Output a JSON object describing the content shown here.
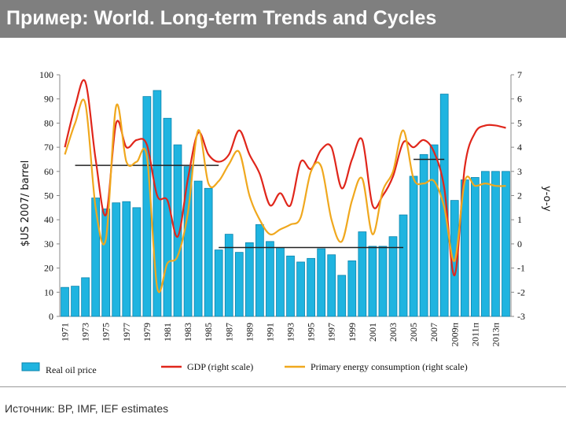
{
  "chart_data": {
    "type": "bar-line",
    "title": "Пример: World. Long-term Trends and Cycles",
    "source": "Источник: BP, IMF, IEF estimates",
    "ylabel": "$US 2007/ barrel",
    "y2label": "y-o-y",
    "categories": [
      "1971",
      null,
      "1973",
      null,
      "1975",
      null,
      "1977",
      null,
      "1979",
      null,
      "1981",
      null,
      "1983",
      null,
      "1985",
      null,
      "1987",
      null,
      "1989",
      null,
      "1991",
      null,
      "1993",
      null,
      "1995",
      null,
      "1997",
      null,
      "1999",
      null,
      "2001",
      null,
      "2003",
      null,
      "2005",
      null,
      "2007",
      null,
      "2009п",
      null,
      "2011п",
      null,
      "2013п",
      null
    ],
    "series": [
      {
        "name": "Real oil price",
        "type": "bar",
        "color": "#1fb4e0",
        "values": [
          12,
          12.5,
          16,
          49,
          44.5,
          47,
          47.5,
          45,
          91,
          93.5,
          82,
          71,
          62,
          56,
          53,
          27.5,
          34,
          26.5,
          30.5,
          38,
          31,
          28.5,
          25,
          22.5,
          24,
          28,
          25.5,
          17,
          23,
          35,
          29,
          29,
          33,
          42,
          58,
          67,
          71,
          92,
          48,
          56.5,
          57.5,
          60,
          60,
          60
        ]
      },
      {
        "name": "GDP (right scale)",
        "type": "line",
        "axis": "y2",
        "color": "#e0261b",
        "values": [
          4.0,
          5.7,
          6.7,
          3.5,
          1.2,
          5.0,
          4.0,
          4.3,
          4.1,
          2.0,
          1.8,
          0.3,
          2.7,
          4.6,
          3.7,
          3.4,
          3.7,
          4.7,
          3.7,
          2.9,
          1.6,
          2.1,
          1.6,
          3.4,
          3.1,
          3.9,
          4.0,
          2.3,
          3.5,
          4.3,
          1.6,
          2.0,
          2.8,
          4.2,
          4.0,
          4.3,
          3.8,
          2.3,
          -1.3,
          3.2,
          4.6,
          4.9,
          4.9,
          4.8
        ]
      },
      {
        "name": "Primary energy consumption (right scale)",
        "type": "line",
        "axis": "y2",
        "color": "#f0a81e",
        "values": [
          3.7,
          5.0,
          5.8,
          1.5,
          0.2,
          5.7,
          3.4,
          3.4,
          3.6,
          -1.8,
          -0.8,
          -0.5,
          1.3,
          4.7,
          2.5,
          2.6,
          3.3,
          3.8,
          2.0,
          1.0,
          0.4,
          0.6,
          0.8,
          1.1,
          3.0,
          3.2,
          1.0,
          0.1,
          1.8,
          2.7,
          0.4,
          2.2,
          3.0,
          4.7,
          2.7,
          2.5,
          2.6,
          1.5,
          -0.7,
          2.6,
          2.4,
          2.5,
          2.4,
          2.4
        ]
      }
    ],
    "levels": [
      {
        "value": 62.5,
        "start": 1,
        "end": 15
      },
      {
        "value": 28.5,
        "start": 15,
        "end": 33
      },
      {
        "value": 65,
        "start": 34,
        "end": 37
      }
    ],
    "ylim": [
      0,
      100
    ],
    "yticks": [
      0,
      10,
      20,
      30,
      40,
      50,
      60,
      70,
      80,
      90,
      100
    ],
    "y2lim": [
      -3,
      7
    ],
    "y2ticks": [
      -3,
      -2,
      -1,
      0,
      1,
      2,
      3,
      4,
      5,
      6,
      7
    ],
    "legend": "bottom"
  }
}
